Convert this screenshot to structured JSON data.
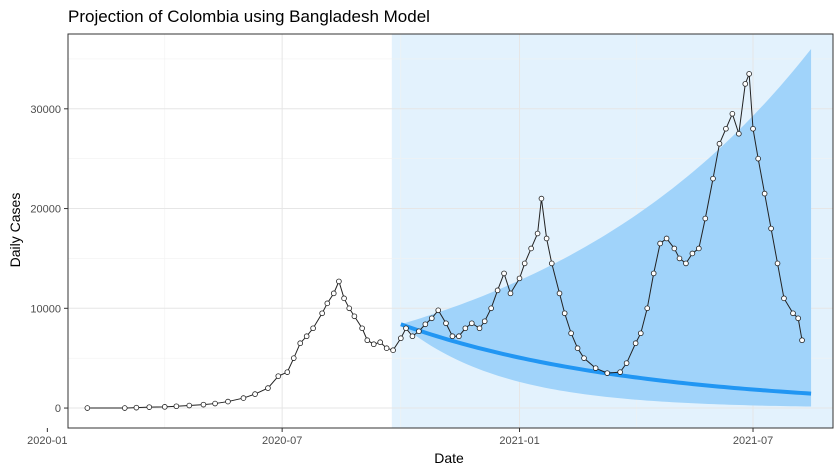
{
  "chart_data": {
    "type": "line",
    "title": "Projection of Colombia using Bangladesh Model",
    "xlabel": "Date",
    "ylabel": "Daily Cases",
    "x_range": [
      "2020-01-17",
      "2021-09-01"
    ],
    "y_range": [
      -2000,
      37500
    ],
    "x_ticks": [
      {
        "date": "2020-01-01",
        "label": "2020-01"
      },
      {
        "date": "2020-07-01",
        "label": "2020-07"
      },
      {
        "date": "2021-01-01",
        "label": "2021-01"
      },
      {
        "date": "2021-07-01",
        "label": "2021-07"
      }
    ],
    "y_ticks": [
      0,
      10000,
      20000,
      30000
    ],
    "grid": true,
    "legend": "none",
    "projection_window": {
      "start": "2020-09-24",
      "end": "2021-09-01",
      "color": "#e3f2fd"
    },
    "projection": {
      "start_date": "2020-10-01",
      "end_date": "2021-08-15",
      "line_start": 8400,
      "line_end": 1450,
      "upper_start": 8400,
      "upper_end": 36000,
      "lower_start": 8400,
      "lower_end": 150,
      "line_color": "#2196f3",
      "band_color": "#a0d3fa"
    },
    "series": [
      {
        "marker": "open-circle",
        "color": "#222222",
        "points": [
          [
            "2020-02-01",
            0
          ],
          [
            "2020-03-01",
            0
          ],
          [
            "2020-03-10",
            40
          ],
          [
            "2020-03-20",
            90
          ],
          [
            "2020-04-01",
            120
          ],
          [
            "2020-04-10",
            180
          ],
          [
            "2020-04-20",
            250
          ],
          [
            "2020-05-01",
            340
          ],
          [
            "2020-05-10",
            450
          ],
          [
            "2020-05-20",
            650
          ],
          [
            "2020-06-01",
            1000
          ],
          [
            "2020-06-10",
            1400
          ],
          [
            "2020-06-20",
            2000
          ],
          [
            "2020-06-28",
            3200
          ],
          [
            "2020-07-05",
            3600
          ],
          [
            "2020-07-10",
            5000
          ],
          [
            "2020-07-15",
            6500
          ],
          [
            "2020-07-20",
            7200
          ],
          [
            "2020-07-25",
            8000
          ],
          [
            "2020-08-01",
            9500
          ],
          [
            "2020-08-05",
            10500
          ],
          [
            "2020-08-10",
            11500
          ],
          [
            "2020-08-14",
            12700
          ],
          [
            "2020-08-18",
            11000
          ],
          [
            "2020-08-22",
            10000
          ],
          [
            "2020-08-26",
            9200
          ],
          [
            "2020-09-01",
            8000
          ],
          [
            "2020-09-05",
            6800
          ],
          [
            "2020-09-10",
            6400
          ],
          [
            "2020-09-15",
            6600
          ],
          [
            "2020-09-20",
            6000
          ],
          [
            "2020-09-25",
            5800
          ],
          [
            "2020-10-01",
            7000
          ],
          [
            "2020-10-05",
            8000
          ],
          [
            "2020-10-10",
            7200
          ],
          [
            "2020-10-15",
            7700
          ],
          [
            "2020-10-20",
            8400
          ],
          [
            "2020-10-25",
            9000
          ],
          [
            "2020-10-30",
            9800
          ],
          [
            "2020-11-05",
            8500
          ],
          [
            "2020-11-10",
            7200
          ],
          [
            "2020-11-15",
            7200
          ],
          [
            "2020-11-20",
            8000
          ],
          [
            "2020-11-25",
            8500
          ],
          [
            "2020-12-01",
            8000
          ],
          [
            "2020-12-05",
            8700
          ],
          [
            "2020-12-10",
            10000
          ],
          [
            "2020-12-15",
            11800
          ],
          [
            "2020-12-20",
            13500
          ],
          [
            "2020-12-25",
            11500
          ],
          [
            "2021-01-01",
            13000
          ],
          [
            "2021-01-05",
            14500
          ],
          [
            "2021-01-10",
            16000
          ],
          [
            "2021-01-15",
            17500
          ],
          [
            "2021-01-18",
            21000
          ],
          [
            "2021-01-22",
            17000
          ],
          [
            "2021-01-26",
            14500
          ],
          [
            "2021-02-01",
            11500
          ],
          [
            "2021-02-05",
            9500
          ],
          [
            "2021-02-10",
            7500
          ],
          [
            "2021-02-15",
            6000
          ],
          [
            "2021-02-20",
            5000
          ],
          [
            "2021-03-01",
            4000
          ],
          [
            "2021-03-10",
            3500
          ],
          [
            "2021-03-20",
            3600
          ],
          [
            "2021-03-25",
            4500
          ],
          [
            "2021-04-01",
            6500
          ],
          [
            "2021-04-05",
            7500
          ],
          [
            "2021-04-10",
            10000
          ],
          [
            "2021-04-15",
            13500
          ],
          [
            "2021-04-20",
            16500
          ],
          [
            "2021-04-25",
            17000
          ],
          [
            "2021-05-01",
            16000
          ],
          [
            "2021-05-05",
            15000
          ],
          [
            "2021-05-10",
            14500
          ],
          [
            "2021-05-15",
            15500
          ],
          [
            "2021-05-20",
            16000
          ],
          [
            "2021-05-25",
            19000
          ],
          [
            "2021-05-31",
            23000
          ],
          [
            "2021-06-05",
            26500
          ],
          [
            "2021-06-10",
            28000
          ],
          [
            "2021-06-15",
            29500
          ],
          [
            "2021-06-20",
            27500
          ],
          [
            "2021-06-25",
            32500
          ],
          [
            "2021-06-28",
            33500
          ],
          [
            "2021-07-01",
            28000
          ],
          [
            "2021-07-05",
            25000
          ],
          [
            "2021-07-10",
            21500
          ],
          [
            "2021-07-15",
            18000
          ],
          [
            "2021-07-20",
            14500
          ],
          [
            "2021-07-25",
            11000
          ],
          [
            "2021-08-01",
            9500
          ],
          [
            "2021-08-05",
            9000
          ],
          [
            "2021-08-08",
            6800
          ]
        ]
      }
    ]
  }
}
